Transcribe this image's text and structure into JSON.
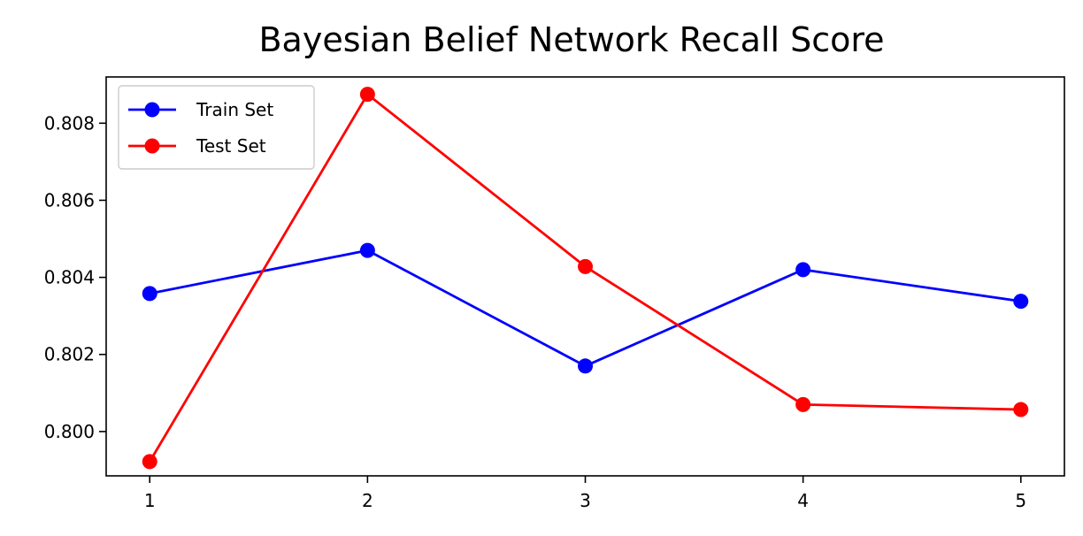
{
  "chart_data": {
    "type": "line",
    "title": "Bayesian Belief Network Recall Score",
    "xlabel": "",
    "ylabel": "",
    "x": [
      1,
      2,
      3,
      4,
      5
    ],
    "x_ticks": [
      "1",
      "2",
      "3",
      "4",
      "5"
    ],
    "y_ticks": [
      "0.800",
      "0.802",
      "0.804",
      "0.806",
      "0.808"
    ],
    "y_tick_values": [
      0.8,
      0.802,
      0.804,
      0.806,
      0.808
    ],
    "xlim": [
      0.8,
      5.2
    ],
    "ylim": [
      0.79885,
      0.8092
    ],
    "grid": false,
    "legend_position": "top-left",
    "series": [
      {
        "name": "Train Set",
        "color": "#0000ff",
        "marker": "circle",
        "values": [
          0.80358,
          0.8047,
          0.8017,
          0.8042,
          0.80338
        ]
      },
      {
        "name": "Test Set",
        "color": "#ff0000",
        "marker": "circle",
        "values": [
          0.79922,
          0.80875,
          0.80428,
          0.8007,
          0.80057
        ]
      }
    ]
  }
}
